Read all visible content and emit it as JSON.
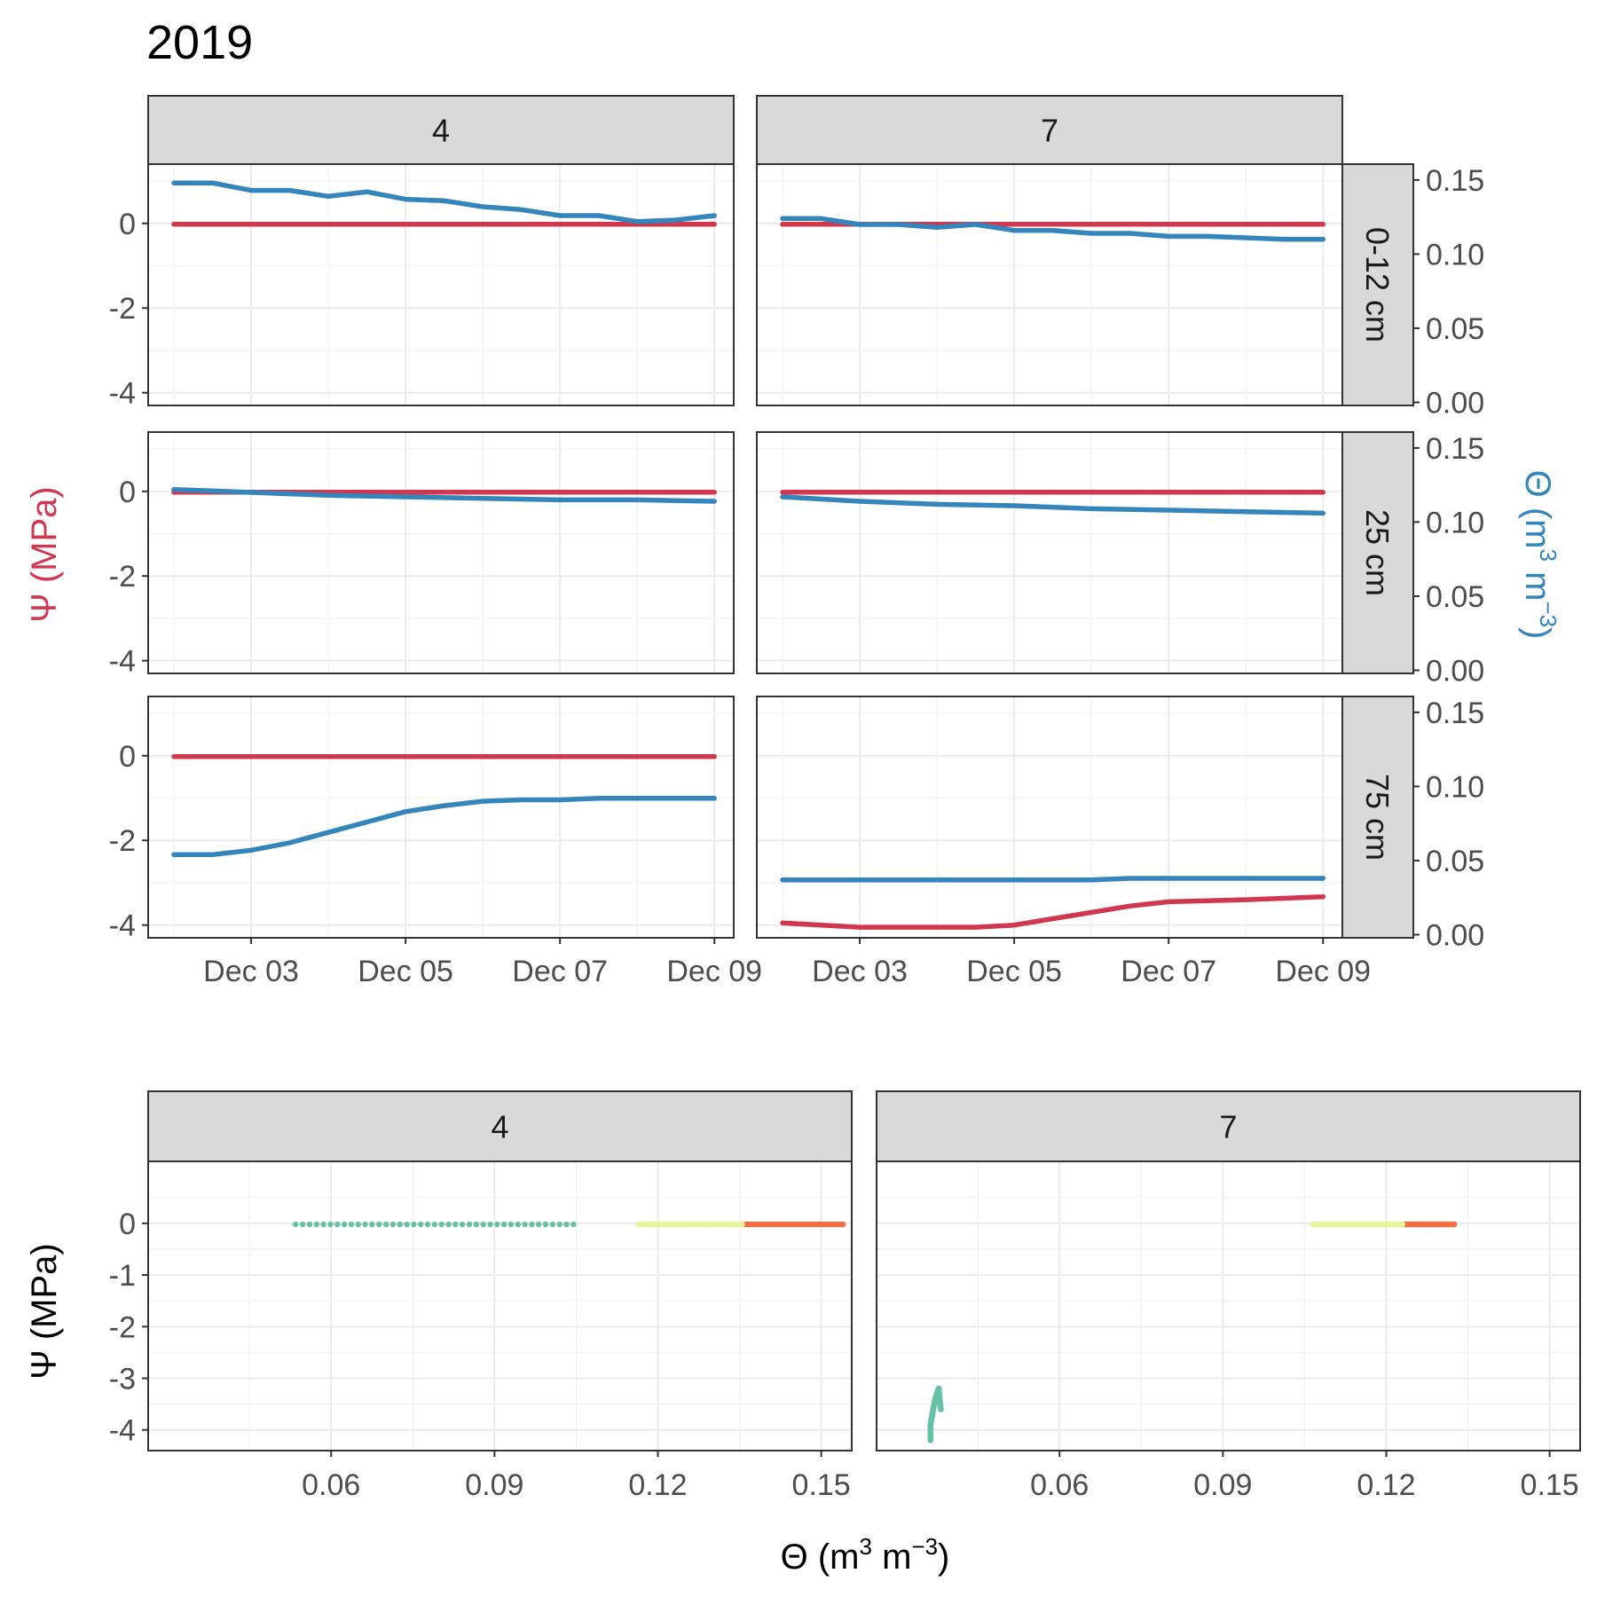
{
  "colors": {
    "psi": "#D1384F",
    "theta": "#3385BB",
    "depth_0_12": "#F46D43",
    "depth_25": "#E6F598",
    "depth_75": "#66C2A5",
    "strip_fill": "#D9D9D9",
    "grid_major": "#EBEBEB",
    "grid_minor": "#F4F4F4",
    "panel_border": "#333333"
  },
  "chart_data": [
    {
      "type": "line",
      "title": "2019",
      "ylabel_left": "Ψ (MPa)",
      "ylabel_right": "Θ (m³ m⁻³)",
      "ylabel_right_parts": {
        "sym": "Θ (m",
        "e1": "3",
        "mid": " m",
        "e2": "−3",
        "end": ")"
      },
      "columns": [
        "4",
        "7"
      ],
      "rows": [
        "0-12 cm",
        "25 cm",
        "75 cm"
      ],
      "x_range": [
        "2019-12-01T16:00",
        "2019-12-09T06:00"
      ],
      "x_ticks": [
        {
          "label": "Dec 03",
          "value": "2019-12-03"
        },
        {
          "label": "Dec 05",
          "value": "2019-12-05"
        },
        {
          "label": "Dec 07",
          "value": "2019-12-07"
        },
        {
          "label": "Dec 09",
          "value": "2019-12-09"
        }
      ],
      "y_left_ticks": [
        "0",
        "-2",
        "-4"
      ],
      "y_left_range": [
        -4.3,
        1.4
      ],
      "y_right_ticks": [
        "0.15",
        "0.10",
        "0.05",
        "0.00"
      ],
      "y_right_range": [
        -0.0021,
        0.1607
      ],
      "grid": true,
      "series": [
        {
          "name": "Ψ",
          "variable": "psi",
          "axis": "left",
          "points": [
            {
              "column": "4",
              "row": "0-12 cm",
              "x": [
                "2019-12-02",
                "2019-12-09"
              ],
              "y": [
                -0.02,
                -0.02
              ]
            },
            {
              "column": "7",
              "row": "0-12 cm",
              "x": [
                "2019-12-02",
                "2019-12-09"
              ],
              "y": [
                -0.02,
                -0.02
              ]
            },
            {
              "column": "4",
              "row": "25 cm",
              "x": [
                "2019-12-02",
                "2019-12-09"
              ],
              "y": [
                -0.02,
                -0.02
              ]
            },
            {
              "column": "7",
              "row": "25 cm",
              "x": [
                "2019-12-02",
                "2019-12-09"
              ],
              "y": [
                -0.02,
                -0.02
              ]
            },
            {
              "column": "4",
              "row": "75 cm",
              "x": [
                "2019-12-02",
                "2019-12-09"
              ],
              "y": [
                -0.02,
                -0.02
              ]
            },
            {
              "column": "7",
              "row": "75 cm",
              "x": [
                "2019-12-02",
                "2019-12-03",
                "2019-12-04",
                "2019-12-04T12:00",
                "2019-12-05",
                "2019-12-05T12:00",
                "2019-12-06",
                "2019-12-06T12:00",
                "2019-12-07",
                "2019-12-08",
                "2019-12-09"
              ],
              "y": [
                -3.95,
                -4.05,
                -4.05,
                -4.05,
                -4.0,
                -3.85,
                -3.7,
                -3.55,
                -3.45,
                -3.4,
                -3.33
              ]
            }
          ]
        },
        {
          "name": "Θ",
          "variable": "theta",
          "axis": "right",
          "points": [
            {
              "column": "4",
              "row": "0-12 cm",
              "x": [
                "2019-12-02",
                "2019-12-02T12:00",
                "2019-12-03",
                "2019-12-03T12:00",
                "2019-12-04",
                "2019-12-04T12:00",
                "2019-12-05",
                "2019-12-05T12:00",
                "2019-12-06",
                "2019-12-06T12:00",
                "2019-12-07",
                "2019-12-07T12:00",
                "2019-12-08",
                "2019-12-08T12:00",
                "2019-12-09"
              ],
              "y": [
                0.148,
                0.148,
                0.143,
                0.143,
                0.139,
                0.142,
                0.137,
                0.136,
                0.132,
                0.13,
                0.126,
                0.126,
                0.122,
                0.123,
                0.126
              ]
            },
            {
              "column": "7",
              "row": "0-12 cm",
              "x": [
                "2019-12-02",
                "2019-12-02T12:00",
                "2019-12-03",
                "2019-12-03T12:00",
                "2019-12-04",
                "2019-12-04T12:00",
                "2019-12-05",
                "2019-12-05T12:00",
                "2019-12-06",
                "2019-12-06T12:00",
                "2019-12-07",
                "2019-12-07T12:00",
                "2019-12-08",
                "2019-12-08T12:00",
                "2019-12-09"
              ],
              "y": [
                0.124,
                0.124,
                0.12,
                0.12,
                0.118,
                0.12,
                0.116,
                0.116,
                0.114,
                0.114,
                0.112,
                0.112,
                0.111,
                0.11,
                0.11
              ]
            },
            {
              "column": "4",
              "row": "25 cm",
              "x": [
                "2019-12-02",
                "2019-12-03",
                "2019-12-04",
                "2019-12-05",
                "2019-12-06",
                "2019-12-07",
                "2019-12-08",
                "2019-12-09"
              ],
              "y": [
                0.122,
                0.12,
                0.118,
                0.117,
                0.116,
                0.115,
                0.115,
                0.114
              ]
            },
            {
              "column": "7",
              "row": "25 cm",
              "x": [
                "2019-12-02",
                "2019-12-03",
                "2019-12-04",
                "2019-12-05",
                "2019-12-06",
                "2019-12-07",
                "2019-12-08",
                "2019-12-09"
              ],
              "y": [
                0.117,
                0.114,
                0.112,
                0.111,
                0.109,
                0.108,
                0.107,
                0.106
              ]
            },
            {
              "column": "4",
              "row": "75 cm",
              "x": [
                "2019-12-02",
                "2019-12-02T12:00",
                "2019-12-03",
                "2019-12-03T12:00",
                "2019-12-04",
                "2019-12-04T12:00",
                "2019-12-05",
                "2019-12-05T12:00",
                "2019-12-06",
                "2019-12-06T12:00",
                "2019-12-07",
                "2019-12-07T12:00",
                "2019-12-08",
                "2019-12-09"
              ],
              "y": [
                0.054,
                0.054,
                0.057,
                0.062,
                0.069,
                0.076,
                0.083,
                0.087,
                0.09,
                0.091,
                0.091,
                0.092,
                0.092,
                0.092
              ]
            },
            {
              "column": "7",
              "row": "75 cm",
              "x": [
                "2019-12-02",
                "2019-12-06",
                "2019-12-06T12:00",
                "2019-12-09"
              ],
              "y": [
                0.037,
                0.037,
                0.038,
                0.038
              ]
            }
          ]
        }
      ]
    },
    {
      "type": "scatter",
      "xlabel": "Θ (m³ m⁻³)",
      "xlabel_parts": {
        "sym": "Θ (m",
        "e1": "3",
        "mid": " m",
        "e2": "−3",
        "end": ")"
      },
      "ylabel": "Ψ (MPa)",
      "columns": [
        "4",
        "7"
      ],
      "xlim": [
        0.0264,
        0.1556
      ],
      "ylim": [
        -4.4,
        1.2
      ],
      "x_ticks": [
        "0.06",
        "0.09",
        "0.12",
        "0.15"
      ],
      "y_ticks": [
        "0",
        "-1",
        "-2",
        "-3",
        "-4"
      ],
      "grid": true,
      "series": [
        {
          "name": "0-12 cm",
          "color_key": "depth_0_12",
          "points": [
            {
              "column": "4",
              "x": [
                0.1355,
                0.154
              ],
              "y": [
                -0.02,
                -0.02
              ]
            },
            {
              "column": "7",
              "x": [
                0.123,
                0.1325
              ],
              "y": [
                -0.02,
                -0.02
              ]
            }
          ]
        },
        {
          "name": "25 cm",
          "color_key": "depth_25",
          "points": [
            {
              "column": "4",
              "x": [
                0.1165,
                0.1355
              ],
              "y": [
                -0.02,
                -0.02
              ]
            },
            {
              "column": "7",
              "x": [
                0.1065,
                0.123
              ],
              "y": [
                -0.02,
                -0.02
              ]
            }
          ]
        },
        {
          "name": "75 cm",
          "color_key": "depth_75",
          "points": [
            {
              "column": "4",
              "x": [
                0.0535,
                0.1045
              ],
              "y": [
                -0.02,
                -0.02
              ]
            },
            {
              "column": "7",
              "x": [
                0.0363,
                0.0363,
                0.0368,
                0.0372,
                0.0375,
                0.0378,
                0.0382
              ],
              "y": [
                -4.2,
                -3.9,
                -3.6,
                -3.4,
                -3.3,
                -3.2,
                -3.6
              ]
            }
          ]
        }
      ]
    }
  ]
}
